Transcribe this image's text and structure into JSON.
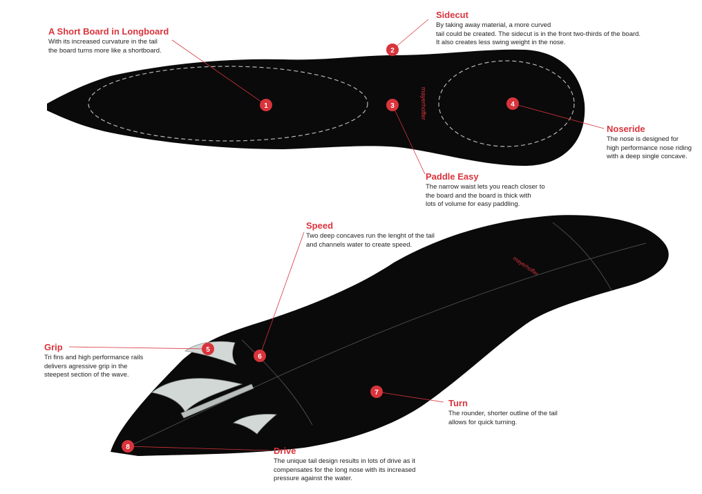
{
  "brand_text": "mayerhoffer",
  "colors": {
    "board": "#0a0a0a",
    "accent": "#d9343c",
    "fin": "#d2d8d6",
    "text": "#222222"
  },
  "markers": [
    "1",
    "2",
    "3",
    "4",
    "5",
    "6",
    "7",
    "8"
  ],
  "callouts": {
    "short_board": {
      "title": "A Short Board in Longboard",
      "lines": [
        "With its increased curvature in the tail",
        "the board turns more like a shortboard."
      ]
    },
    "sidecut": {
      "title": "Sidecut",
      "lines": [
        "By taking away material, a more curved",
        "tail could be created. The sidecut is in the front two-thirds of the board.",
        "It also creates less swing weight in the nose."
      ]
    },
    "noseride": {
      "title": "Noseride",
      "lines": [
        "The nose is designed for",
        "high performance nose riding",
        "with a deep single concave."
      ]
    },
    "paddle": {
      "title": "Paddle Easy",
      "lines": [
        "The narrow waist lets you reach closer to",
        "the board and the board is thick with",
        "lots of volume for easy paddling."
      ]
    },
    "speed": {
      "title": "Speed",
      "lines": [
        "Two deep concaves run the lenght of the tail",
        "and channels water to create speed."
      ]
    },
    "grip": {
      "title": "Grip",
      "lines": [
        "Tri fins and high performance rails",
        "delivers agressive grip in the",
        "steepest section of the wave."
      ]
    },
    "turn": {
      "title": "Turn",
      "lines": [
        "The rounder, shorter outline of the tail",
        "allows for quick turning."
      ]
    },
    "drive": {
      "title": "Drive",
      "lines": [
        "The unique tail design results in lots of drive as it",
        "compensates for the long nose with its increased",
        "pressure against the water."
      ]
    }
  }
}
